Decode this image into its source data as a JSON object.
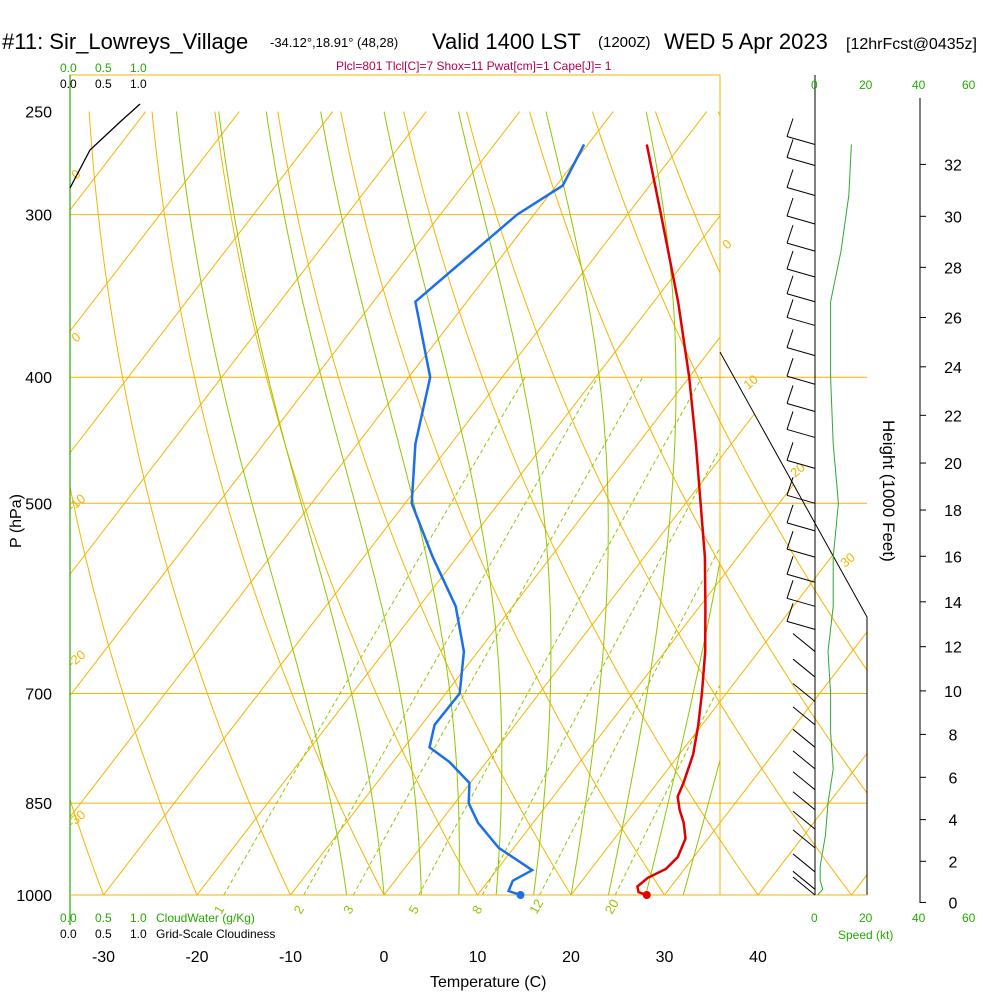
{
  "header": {
    "station": "#11: Sir_Lowreys_Village",
    "coords": "-34.12°,18.91° (48,28)",
    "valid": "Valid 1400 LST",
    "utc": "(1200Z)",
    "date": "WED 5 Apr 2023",
    "forecast": "[12hrFcst@0435z]"
  },
  "indices_line": "Plcl=801 Tlcl[C]=7 Shox=11 Pwat[cm]=1 Cape[J]= 1",
  "labels": {
    "ylabel": "P (hPa)",
    "xlabel": "Temperature (C)",
    "height_label": "Height (1000 Feet)",
    "cloudwater": "CloudWater (g/Kg)",
    "cloudiness": "Grid-Scale Cloudiness",
    "speed": "Speed (kt)"
  },
  "cloud_scale": [
    "0.0",
    "0.5",
    "1.0"
  ],
  "speed_ticks": [
    "0",
    "20",
    "40",
    "60"
  ],
  "colors": {
    "grid": "#f5b400",
    "moist_adiabat": "#8fc700",
    "mixing_ratio": "#8fc700",
    "temperature": "#e00000",
    "dewpoint": "#1c6fe8",
    "speed_line": "#2fa82f",
    "indices": "#b0004f",
    "green_text": "#22aa00"
  },
  "chart_data": {
    "type": "skew-t",
    "xlabel": "Temperature (C)",
    "ylabel": "P (hPa)",
    "x_ticks": [
      -30,
      -20,
      -10,
      0,
      10,
      20,
      30,
      40
    ],
    "p_ticks": [
      250,
      300,
      400,
      500,
      700,
      850,
      1000
    ],
    "p_range": [
      250,
      1000
    ],
    "height_ticks_kft": [
      0,
      2,
      4,
      6,
      8,
      10,
      12,
      14,
      16,
      18,
      20,
      22,
      24,
      26,
      28,
      30,
      32
    ],
    "isotherm_labels": [
      "0",
      "10",
      "20",
      "30",
      "-10",
      "-20",
      "-30"
    ],
    "mixing_ratio_labels": [
      "1",
      "2",
      "3",
      "5",
      "8",
      "12",
      "20"
    ],
    "temperature_profile": [
      {
        "p": 1000,
        "t": 28.1
      },
      {
        "p": 995,
        "t": 27.0
      },
      {
        "p": 985,
        "t": 26.4
      },
      {
        "p": 970,
        "t": 26.8
      },
      {
        "p": 955,
        "t": 28.0
      },
      {
        "p": 935,
        "t": 28.3
      },
      {
        "p": 905,
        "t": 27.6
      },
      {
        "p": 880,
        "t": 26.1
      },
      {
        "p": 860,
        "t": 24.6
      },
      {
        "p": 840,
        "t": 23.3
      },
      {
        "p": 820,
        "t": 22.8
      },
      {
        "p": 780,
        "t": 21.5
      },
      {
        "p": 740,
        "t": 19.6
      },
      {
        "p": 700,
        "t": 17.4
      },
      {
        "p": 650,
        "t": 14.3
      },
      {
        "p": 600,
        "t": 10.6
      },
      {
        "p": 550,
        "t": 6.5
      },
      {
        "p": 500,
        "t": 1.6
      },
      {
        "p": 450,
        "t": -3.8
      },
      {
        "p": 400,
        "t": -10.0
      },
      {
        "p": 350,
        "t": -17.4
      },
      {
        "p": 300,
        "t": -26.4
      },
      {
        "p": 265,
        "t": -33.7
      }
    ],
    "dewpoint_profile": [
      {
        "p": 1000,
        "t": 14.6
      },
      {
        "p": 993,
        "t": 13.0
      },
      {
        "p": 975,
        "t": 12.6
      },
      {
        "p": 957,
        "t": 13.8
      },
      {
        "p": 920,
        "t": 8.4
      },
      {
        "p": 880,
        "t": 4.1
      },
      {
        "p": 850,
        "t": 1.5
      },
      {
        "p": 820,
        "t": -0.1
      },
      {
        "p": 790,
        "t": -4.0
      },
      {
        "p": 770,
        "t": -7.3
      },
      {
        "p": 740,
        "t": -8.6
      },
      {
        "p": 700,
        "t": -8.5
      },
      {
        "p": 650,
        "t": -11.5
      },
      {
        "p": 600,
        "t": -16.1
      },
      {
        "p": 550,
        "t": -22.6
      },
      {
        "p": 500,
        "t": -29.3
      },
      {
        "p": 450,
        "t": -33.8
      },
      {
        "p": 400,
        "t": -37.7
      },
      {
        "p": 350,
        "t": -45.5
      },
      {
        "p": 330,
        "t": -44.1
      },
      {
        "p": 300,
        "t": -41.8
      },
      {
        "p": 285,
        "t": -39.3
      },
      {
        "p": 265,
        "t": -40.4
      }
    ],
    "surface_points": {
      "temperature": 28.1,
      "dewpoint": 14.6
    },
    "wind_speed_kt": [
      {
        "p": 1000,
        "v": 1
      },
      {
        "p": 990,
        "v": 3
      },
      {
        "p": 975,
        "v": 2
      },
      {
        "p": 950,
        "v": 2
      },
      {
        "p": 900,
        "v": 4
      },
      {
        "p": 850,
        "v": 5
      },
      {
        "p": 800,
        "v": 7
      },
      {
        "p": 750,
        "v": 6
      },
      {
        "p": 700,
        "v": 6
      },
      {
        "p": 650,
        "v": 5
      },
      {
        "p": 600,
        "v": 7
      },
      {
        "p": 550,
        "v": 7
      },
      {
        "p": 500,
        "v": 9
      },
      {
        "p": 450,
        "v": 7
      },
      {
        "p": 400,
        "v": 6
      },
      {
        "p": 350,
        "v": 6
      },
      {
        "p": 320,
        "v": 10
      },
      {
        "p": 290,
        "v": 13
      },
      {
        "p": 265,
        "v": 14
      }
    ]
  }
}
